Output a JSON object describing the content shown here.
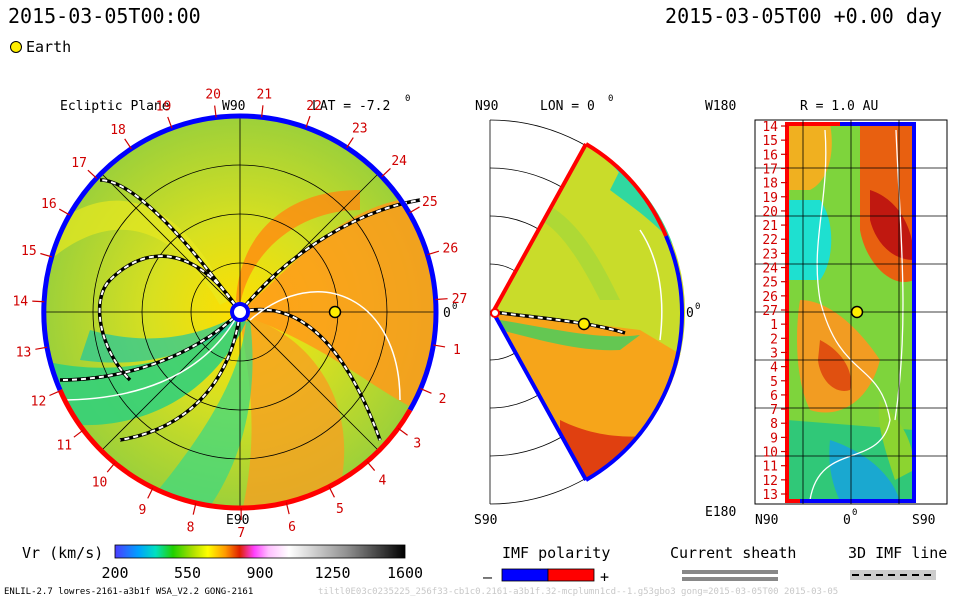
{
  "header": {
    "left_timestamp": "2015-03-05T00:00",
    "right_timestamp": "2015-03-05T00 +0.00 day",
    "legend_earth": "Earth"
  },
  "colors": {
    "sector_minus": "#0000ff",
    "sector_plus": "#ff0000",
    "earth_fill": "#ffee00",
    "sheath": "#888888"
  },
  "chart_data": [
    {
      "type": "heatmap",
      "panel": "ecliptic",
      "title": "Ecliptic Plane",
      "lat_label": "LAT = -7.2",
      "lat_sup": "0",
      "top_label": "W90",
      "bottom_label": "E90",
      "right_label": "0",
      "right_sup": "0",
      "rotation_ticks": [
        "20",
        "21",
        "22",
        "23",
        "24",
        "25",
        "26",
        "27",
        "1",
        "2",
        "3",
        "4",
        "5",
        "6",
        "7",
        "8",
        "9",
        "10",
        "11",
        "12",
        "13",
        "14",
        "15",
        "16",
        "17",
        "18",
        "19"
      ]
    },
    {
      "type": "heatmap",
      "panel": "meridional",
      "title": "LON = 0",
      "title_sup": "0",
      "top_label": "N90",
      "bottom_label": "S90",
      "right_label": "0",
      "right_sup": "0"
    },
    {
      "type": "heatmap",
      "panel": "radial",
      "title": "R = 1.0 AU",
      "top_label": "W180",
      "bottom_label": "E180",
      "x_labels": [
        "N90",
        "0",
        "S90"
      ],
      "x_label_sup": "0",
      "y_ticks": [
        "14",
        "15",
        "16",
        "17",
        "18",
        "19",
        "20",
        "21",
        "22",
        "23",
        "24",
        "25",
        "26",
        "27",
        "1",
        "2",
        "3",
        "4",
        "5",
        "6",
        "7",
        "8",
        "9",
        "10",
        "11",
        "12",
        "13"
      ]
    }
  ],
  "colorbar": {
    "label": "Vr (km/s)",
    "ticks": [
      200,
      550,
      900,
      1250,
      1600
    ],
    "range": [
      200,
      1600
    ]
  },
  "imf_legend": {
    "title": "IMF polarity",
    "minus": "–",
    "plus": "+"
  },
  "sheath_legend": {
    "title": "Current sheath"
  },
  "imf_line_legend": {
    "title": "3D IMF line"
  },
  "footer": {
    "model_info": "ENLIL-2.7 lowres-2161-a3b1f WSA_V2.2 GONG-2161",
    "faint_info": "tiltl0E03c0235225_256f33-cb1c0.2161-a3b1f.32-mcplumn1cd--1.g53gbo3 gong=2015-03-05T00  2015-03-05"
  }
}
